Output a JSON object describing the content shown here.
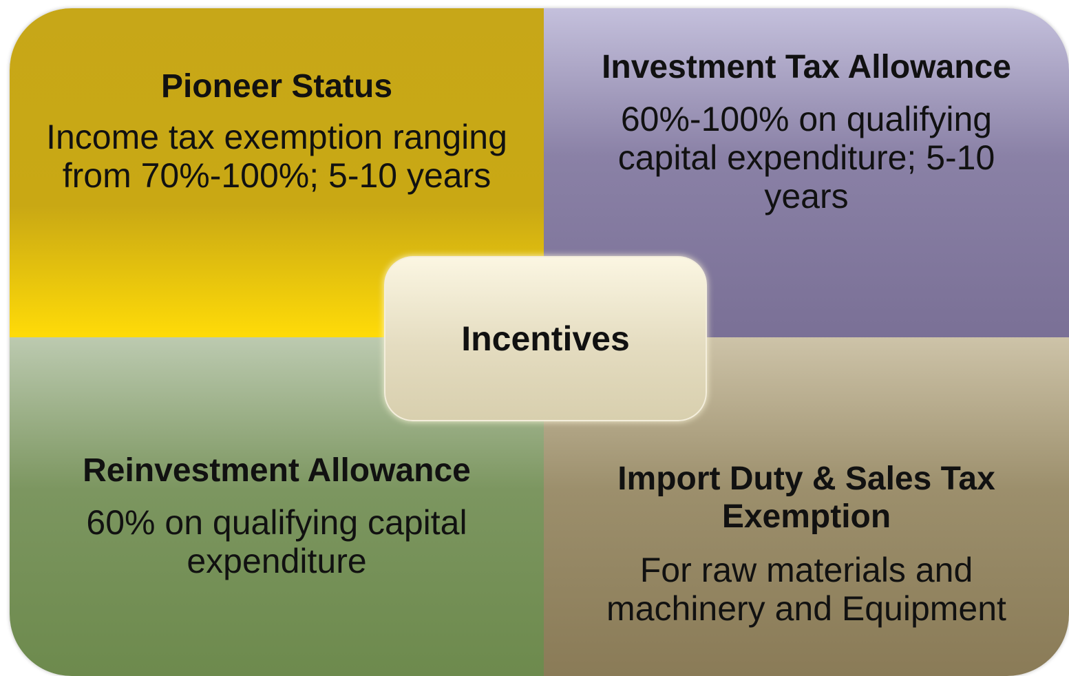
{
  "center": {
    "label": "Incentives"
  },
  "quadrants": [
    {
      "title": "Pioneer Status",
      "description": "Income tax exemption ranging from 70%-100%; 5-10 years"
    },
    {
      "title": "Investment Tax Allowance",
      "description": "60%-100% on qualifying capital expenditure; 5-10 years"
    },
    {
      "title": "Reinvestment Allowance",
      "description": "60% on qualifying capital expenditure"
    },
    {
      "title": "Import Duty & Sales Tax Exemption",
      "description": "For raw materials and machinery and Equipment"
    }
  ]
}
